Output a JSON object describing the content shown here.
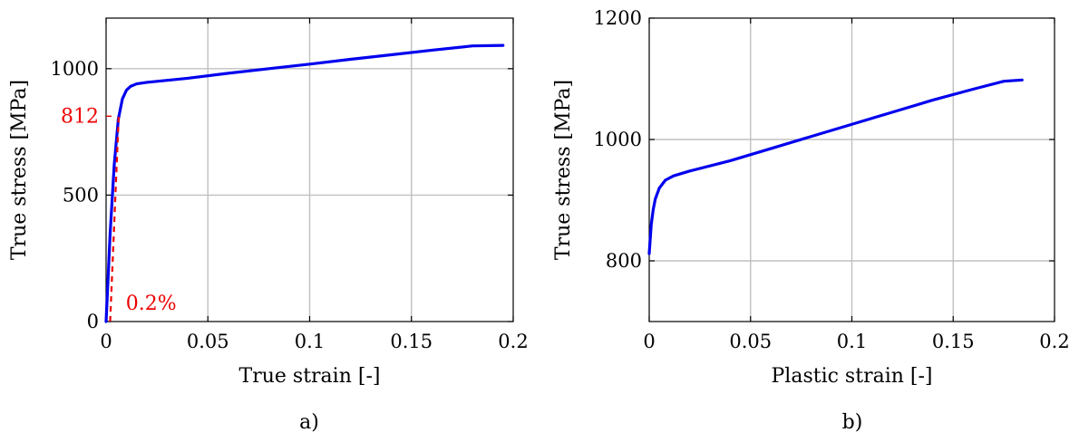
{
  "chart_data": [
    {
      "type": "line",
      "panel_label": "a)",
      "xlabel": "True strain [-]",
      "ylabel": "True stress [MPa]",
      "xlim": [
        0,
        0.2
      ],
      "ylim": [
        0,
        1200
      ],
      "x_ticks": [
        0,
        0.05,
        0.1,
        0.15,
        0.2
      ],
      "x_tick_labels": [
        "0",
        "0.05",
        "0.1",
        "0.15",
        "0.2"
      ],
      "y_ticks": [
        0,
        500,
        1000
      ],
      "y_tick_labels": [
        "0",
        "500",
        "1000"
      ],
      "grid": true,
      "series": [
        {
          "color": "#0000ee",
          "style": "solid",
          "x": [
            0,
            0.002,
            0.004,
            0.006,
            0.008,
            0.01,
            0.012,
            0.015,
            0.02,
            0.04,
            0.06,
            0.08,
            0.1,
            0.12,
            0.14,
            0.16,
            0.18,
            0.195
          ],
          "y": [
            0,
            350,
            620,
            800,
            880,
            915,
            930,
            940,
            946,
            962,
            982,
            1000,
            1018,
            1037,
            1055,
            1073,
            1090,
            1092
          ]
        },
        {
          "color": "#ee0000",
          "style": "dashed",
          "x": [
            0.002,
            0.0062
          ],
          "y": [
            0,
            812
          ]
        }
      ],
      "annotations": [
        {
          "text": "812",
          "color": "#ee0000",
          "y": 812,
          "marker": "y-axis"
        },
        {
          "text": "0.2%",
          "color": "#ee0000",
          "x": 0.007,
          "y": 75
        }
      ]
    },
    {
      "type": "line",
      "panel_label": "b)",
      "xlabel": "Plastic strain [-]",
      "ylabel": "True stress [MPa]",
      "xlim": [
        0,
        0.2
      ],
      "ylim": [
        700,
        1200
      ],
      "x_ticks": [
        0,
        0.05,
        0.1,
        0.15,
        0.2
      ],
      "x_tick_labels": [
        "0",
        "0.05",
        "0.1",
        "0.15",
        "0.2"
      ],
      "y_ticks": [
        800,
        1000,
        1200
      ],
      "y_tick_labels": [
        "800",
        "1000",
        "1200"
      ],
      "grid": true,
      "series": [
        {
          "color": "#0000ee",
          "style": "solid",
          "x": [
            0,
            0.001,
            0.002,
            0.003,
            0.005,
            0.008,
            0.012,
            0.02,
            0.04,
            0.06,
            0.08,
            0.1,
            0.12,
            0.14,
            0.16,
            0.175,
            0.184
          ],
          "y": [
            812,
            860,
            885,
            902,
            920,
            933,
            940,
            948,
            965,
            985,
            1005,
            1025,
            1045,
            1065,
            1083,
            1096,
            1098
          ]
        }
      ],
      "annotations": []
    }
  ]
}
